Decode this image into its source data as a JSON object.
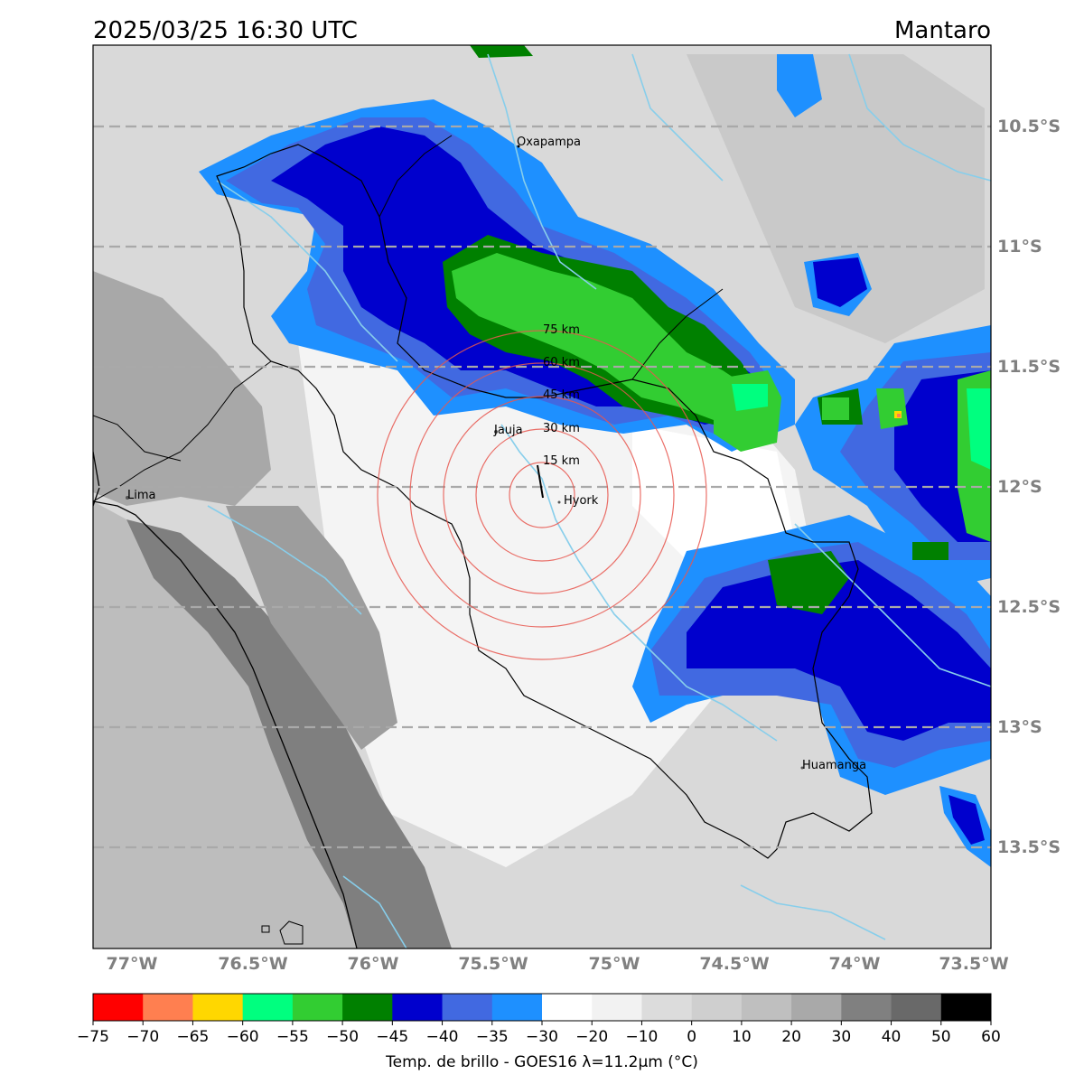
{
  "header": {
    "timestamp": "2025/03/25 16:30 UTC",
    "region": "Mantaro"
  },
  "map": {
    "latitude_labels": [
      "10.5°S",
      "11°S",
      "11.5°S",
      "12°S",
      "12.5°S",
      "13°S",
      "13.5°S"
    ],
    "longitude_labels": [
      "77°W",
      "76.5°W",
      "76°W",
      "75.5°W",
      "75°W",
      "74.5°W",
      "74°W",
      "73.5°W"
    ],
    "places": [
      {
        "name": "Oxapampa"
      },
      {
        "name": "Jauja"
      },
      {
        "name": "Hyork"
      },
      {
        "name": "Lima"
      },
      {
        "name": "Huamanga"
      }
    ],
    "range_rings": [
      "15 km",
      "30 km",
      "45 km",
      "60 km",
      "75 km"
    ],
    "gridline_color": "#a9a9a9",
    "ring_color": "#e8574f",
    "river_color": "#87ceeb"
  },
  "colorbar": {
    "tick_labels": [
      "−75",
      "−70",
      "−65",
      "−60",
      "−55",
      "−50",
      "−45",
      "−40",
      "−35",
      "−30",
      "−20",
      "−10",
      "0",
      "10",
      "20",
      "30",
      "40",
      "50",
      "60"
    ],
    "colors": [
      "#ff0000",
      "#ff7f50",
      "#ffd700",
      "#00ff7f",
      "#32cd32",
      "#008000",
      "#0000cd",
      "#4169e1",
      "#1e90ff",
      "#ffffff",
      "#f2f2f2",
      "#dcdcdc",
      "#cfcfcf",
      "#bfbfbf",
      "#a9a9a9",
      "#808080",
      "#696969",
      "#000000"
    ],
    "label": "Temp. de brillo - GOES16 λ=11.2μm (°C)"
  }
}
